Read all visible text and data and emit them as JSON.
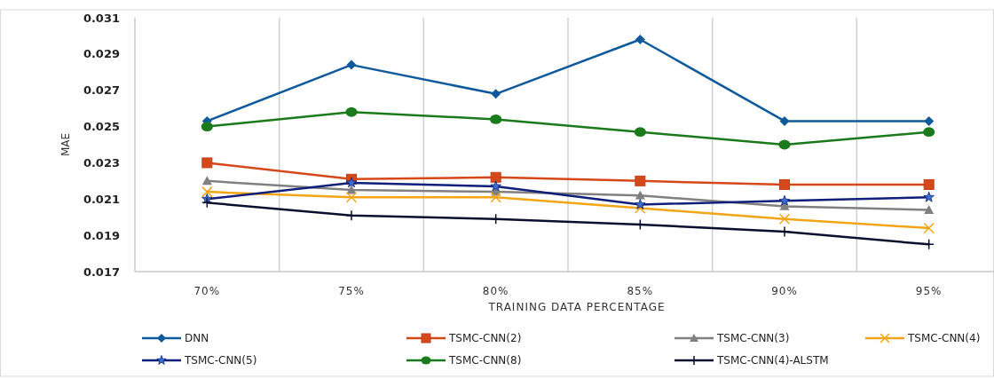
{
  "chart_data": {
    "type": "line",
    "xlabel": "TRAINING DATA PERCENTAGE",
    "ylabel": "MAE",
    "categories": [
      "70%",
      "75%",
      "80%",
      "85%",
      "90%",
      "95%"
    ],
    "ylim": [
      0.017,
      0.031
    ],
    "yticks": [
      {
        "value": 0.017,
        "label": "0.017"
      },
      {
        "value": 0.019,
        "label": "0.019"
      },
      {
        "value": 0.021,
        "label": "0.021"
      },
      {
        "value": 0.023,
        "label": "0.023"
      },
      {
        "value": 0.025,
        "label": "0.025"
      },
      {
        "value": 0.027,
        "label": "0.027"
      },
      {
        "value": 0.029,
        "label": "0.029"
      },
      {
        "value": 0.031,
        "label": "0.031"
      }
    ],
    "grid": "x",
    "legend": "bottom",
    "series": [
      {
        "name": "DNN",
        "color": "#0e5a9c",
        "marker": "diamond",
        "values": [
          0.0253,
          0.0284,
          0.0268,
          0.0298,
          0.0253,
          0.0253
        ]
      },
      {
        "name": "TSMC-CNN(2)",
        "color": "#d5481a",
        "marker": "square",
        "values": [
          0.023,
          0.0221,
          0.0222,
          0.022,
          0.0218,
          0.0218
        ]
      },
      {
        "name": "TSMC-CNN(3)",
        "color": "#808080",
        "marker": "triangle",
        "values": [
          0.022,
          0.0215,
          0.0214,
          0.0212,
          0.0206,
          0.0204
        ]
      },
      {
        "name": "TSMC-CNN(4)",
        "color": "#f2a516",
        "marker": "cross",
        "values": [
          0.0214,
          0.0211,
          0.0211,
          0.0205,
          0.0199,
          0.0194
        ]
      },
      {
        "name": "TSMC-CNN(5)",
        "color": "#0f1f7a",
        "marker": "star",
        "values": [
          0.021,
          0.0219,
          0.0217,
          0.0207,
          0.0209,
          0.0211
        ]
      },
      {
        "name": "TSMC-CNN(8)",
        "color": "#1b7a1b",
        "marker": "circle",
        "values": [
          0.025,
          0.0258,
          0.0254,
          0.0247,
          0.024,
          0.0247
        ]
      },
      {
        "name": "TSMC-CNN(4)-ALSTM",
        "color": "#0a0f2e",
        "marker": "cross",
        "values": [
          0.0208,
          0.0201,
          0.0199,
          0.0196,
          0.0192,
          0.0185
        ]
      }
    ]
  }
}
